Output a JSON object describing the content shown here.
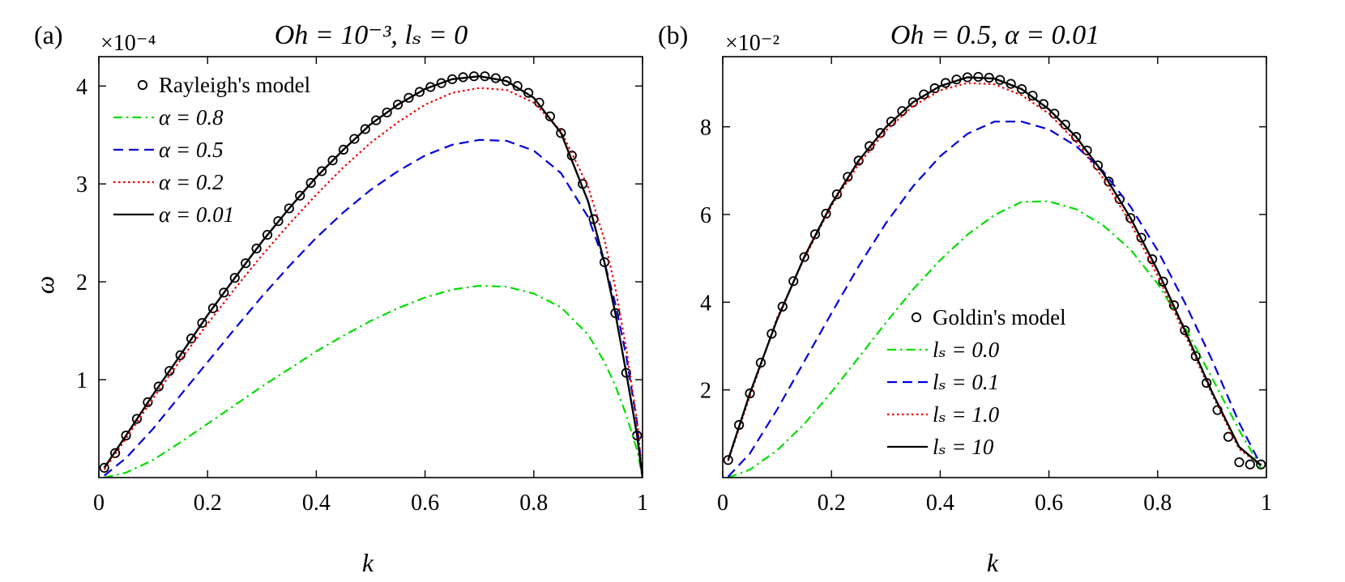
{
  "chart_data": [
    {
      "type": "line",
      "panel_label": "(a)",
      "title": "Oh = 10⁻³,  lₛ = 0",
      "exponent_label": "×10⁻⁴",
      "xlabel": "k",
      "ylabel": "ω",
      "xlim": [
        0,
        1
      ],
      "ylim": [
        0,
        4.3
      ],
      "xticks": [
        0,
        0.2,
        0.4,
        0.6,
        0.8,
        1
      ],
      "xtick_labels": [
        "0",
        "0.2",
        "0.4",
        "0.6",
        "0.8",
        "1"
      ],
      "yticks": [
        1,
        2,
        3,
        4
      ],
      "ytick_labels": [
        "1",
        "2",
        "3",
        "4"
      ],
      "legend_position": "top-left",
      "series": [
        {
          "name": "Rayleigh's model",
          "style": "markers",
          "color": "#000000",
          "x": [
            0.01,
            0.03,
            0.05,
            0.07,
            0.09,
            0.11,
            0.13,
            0.15,
            0.17,
            0.19,
            0.21,
            0.23,
            0.25,
            0.27,
            0.29,
            0.31,
            0.33,
            0.35,
            0.37,
            0.39,
            0.41,
            0.43,
            0.45,
            0.47,
            0.49,
            0.51,
            0.53,
            0.55,
            0.57,
            0.59,
            0.61,
            0.63,
            0.65,
            0.67,
            0.69,
            0.71,
            0.73,
            0.75,
            0.77,
            0.79,
            0.81,
            0.83,
            0.85,
            0.87,
            0.89,
            0.91,
            0.93,
            0.95,
            0.97,
            0.99
          ],
          "y": [
            0.1,
            0.25,
            0.43,
            0.6,
            0.77,
            0.93,
            1.09,
            1.25,
            1.42,
            1.58,
            1.73,
            1.89,
            2.04,
            2.19,
            2.34,
            2.48,
            2.62,
            2.75,
            2.88,
            3.01,
            3.13,
            3.24,
            3.35,
            3.46,
            3.56,
            3.65,
            3.73,
            3.81,
            3.88,
            3.94,
            3.99,
            4.03,
            4.07,
            4.09,
            4.1,
            4.1,
            4.08,
            4.05,
            4.0,
            3.93,
            3.83,
            3.69,
            3.52,
            3.29,
            3.0,
            2.64,
            2.2,
            1.68,
            1.07,
            0.43
          ]
        },
        {
          "name": "α = 0.8",
          "style": "dash-dot",
          "color": "#00dd00",
          "x": [
            0.01,
            0.05,
            0.1,
            0.15,
            0.2,
            0.25,
            0.3,
            0.35,
            0.4,
            0.45,
            0.5,
            0.55,
            0.6,
            0.65,
            0.7,
            0.75,
            0.8,
            0.85,
            0.9,
            0.93,
            0.95,
            0.97,
            0.99,
            1.0
          ],
          "y": [
            0.0,
            0.05,
            0.18,
            0.36,
            0.55,
            0.74,
            0.93,
            1.11,
            1.29,
            1.45,
            1.6,
            1.73,
            1.84,
            1.92,
            1.96,
            1.95,
            1.88,
            1.74,
            1.46,
            1.18,
            0.94,
            0.64,
            0.28,
            0.0
          ]
        },
        {
          "name": "α = 0.5",
          "style": "dashed",
          "color": "#0000dd",
          "x": [
            0.01,
            0.05,
            0.1,
            0.15,
            0.2,
            0.25,
            0.3,
            0.35,
            0.4,
            0.45,
            0.5,
            0.55,
            0.6,
            0.65,
            0.7,
            0.75,
            0.8,
            0.85,
            0.9,
            0.93,
            0.95,
            0.97,
            0.99,
            1.0
          ],
          "y": [
            0.02,
            0.2,
            0.5,
            0.84,
            1.18,
            1.52,
            1.85,
            2.16,
            2.45,
            2.71,
            2.94,
            3.13,
            3.29,
            3.4,
            3.45,
            3.44,
            3.34,
            3.11,
            2.66,
            2.2,
            1.78,
            1.24,
            0.56,
            0.0
          ]
        },
        {
          "name": "α = 0.2",
          "style": "dotted",
          "color": "#ee0000",
          "x": [
            0.01,
            0.05,
            0.1,
            0.15,
            0.2,
            0.25,
            0.3,
            0.35,
            0.4,
            0.45,
            0.5,
            0.55,
            0.6,
            0.65,
            0.7,
            0.75,
            0.8,
            0.85,
            0.9,
            0.93,
            0.95,
            0.97,
            0.99,
            1.0
          ],
          "y": [
            0.08,
            0.4,
            0.81,
            1.2,
            1.57,
            1.93,
            2.27,
            2.59,
            2.89,
            3.17,
            3.42,
            3.63,
            3.81,
            3.93,
            3.98,
            3.96,
            3.83,
            3.54,
            2.97,
            2.43,
            1.94,
            1.32,
            0.57,
            0.0
          ]
        },
        {
          "name": "α = 0.01",
          "style": "solid",
          "color": "#000000",
          "x": [
            0.01,
            0.05,
            0.1,
            0.15,
            0.2,
            0.25,
            0.3,
            0.35,
            0.4,
            0.45,
            0.5,
            0.55,
            0.6,
            0.65,
            0.7,
            0.75,
            0.8,
            0.85,
            0.9,
            0.93,
            0.95,
            0.97,
            0.99,
            1.0
          ],
          "y": [
            0.1,
            0.43,
            0.85,
            1.25,
            1.66,
            2.04,
            2.41,
            2.75,
            3.07,
            3.35,
            3.61,
            3.81,
            3.97,
            4.07,
            4.1,
            4.05,
            3.88,
            3.52,
            2.82,
            2.2,
            1.68,
            1.07,
            0.43,
            0.0
          ]
        }
      ]
    },
    {
      "type": "line",
      "panel_label": "(b)",
      "title": "Oh = 0.5,  α = 0.01",
      "exponent_label": "×10⁻²",
      "xlabel": "k",
      "ylabel": "",
      "xlim": [
        0,
        1
      ],
      "ylim": [
        0,
        9.6
      ],
      "xticks": [
        0,
        0.2,
        0.4,
        0.6,
        0.8,
        1
      ],
      "xtick_labels": [
        "0",
        "0.2",
        "0.4",
        "0.6",
        "0.8",
        "1"
      ],
      "yticks": [
        2,
        4,
        6,
        8
      ],
      "ytick_labels": [
        "2",
        "4",
        "6",
        "8"
      ],
      "legend_position": "bottom-center",
      "series": [
        {
          "name": "Goldin's model",
          "style": "markers",
          "color": "#000000",
          "x": [
            0.01,
            0.03,
            0.05,
            0.07,
            0.09,
            0.11,
            0.13,
            0.15,
            0.17,
            0.19,
            0.21,
            0.23,
            0.25,
            0.27,
            0.29,
            0.31,
            0.33,
            0.35,
            0.37,
            0.39,
            0.41,
            0.43,
            0.45,
            0.47,
            0.49,
            0.51,
            0.53,
            0.55,
            0.57,
            0.59,
            0.61,
            0.63,
            0.65,
            0.67,
            0.69,
            0.71,
            0.73,
            0.75,
            0.77,
            0.79,
            0.81,
            0.83,
            0.85,
            0.87,
            0.89,
            0.91,
            0.93,
            0.95,
            0.97,
            0.99
          ],
          "y": [
            0.4,
            1.2,
            1.92,
            2.62,
            3.28,
            3.9,
            4.48,
            5.03,
            5.55,
            6.02,
            6.46,
            6.86,
            7.23,
            7.56,
            7.86,
            8.12,
            8.36,
            8.56,
            8.74,
            8.88,
            9.0,
            9.08,
            9.13,
            9.14,
            9.12,
            9.07,
            8.98,
            8.86,
            8.71,
            8.52,
            8.3,
            8.05,
            7.77,
            7.46,
            7.12,
            6.75,
            6.35,
            5.92,
            5.47,
            4.98,
            4.47,
            3.93,
            3.36,
            2.77,
            2.16,
            1.54,
            0.93,
            0.35,
            0.3,
            0.3
          ]
        },
        {
          "name": "lₛ = 0.0",
          "style": "dash-dot",
          "color": "#00dd00",
          "x": [
            0.01,
            0.05,
            0.1,
            0.15,
            0.2,
            0.25,
            0.3,
            0.35,
            0.4,
            0.45,
            0.5,
            0.55,
            0.6,
            0.65,
            0.7,
            0.75,
            0.8,
            0.85,
            0.9,
            0.95,
            0.99
          ],
          "y": [
            0.0,
            0.18,
            0.62,
            1.22,
            1.95,
            2.74,
            3.53,
            4.29,
            4.96,
            5.54,
            5.99,
            6.29,
            6.3,
            6.12,
            5.75,
            5.2,
            4.42,
            3.43,
            2.27,
            1.08,
            0.22
          ]
        },
        {
          "name": "lₛ = 0.1",
          "style": "dashed",
          "color": "#0000dd",
          "x": [
            0.01,
            0.05,
            0.1,
            0.15,
            0.2,
            0.25,
            0.3,
            0.35,
            0.4,
            0.45,
            0.5,
            0.55,
            0.6,
            0.65,
            0.7,
            0.75,
            0.8,
            0.85,
            0.9,
            0.95,
            0.99
          ],
          "y": [
            0.02,
            0.55,
            1.55,
            2.65,
            3.75,
            4.82,
            5.8,
            6.64,
            7.33,
            7.84,
            8.12,
            8.12,
            7.94,
            7.56,
            6.98,
            6.18,
            5.18,
            3.99,
            2.68,
            1.25,
            0.28
          ]
        },
        {
          "name": "lₛ = 1.0",
          "style": "dotted",
          "color": "#ee0000",
          "x": [
            0.01,
            0.05,
            0.1,
            0.15,
            0.2,
            0.25,
            0.3,
            0.35,
            0.4,
            0.45,
            0.5,
            0.55,
            0.6,
            0.65,
            0.7,
            0.75,
            0.8,
            0.85,
            0.9,
            0.95,
            0.99
          ],
          "y": [
            0.38,
            1.86,
            3.64,
            5.0,
            6.2,
            7.15,
            7.91,
            8.47,
            8.83,
            9.0,
            8.97,
            8.72,
            8.3,
            7.66,
            6.82,
            5.8,
            4.6,
            3.27,
            1.9,
            0.65,
            0.28
          ]
        },
        {
          "name": "lₛ = 10",
          "style": "solid",
          "color": "#000000",
          "x": [
            0.01,
            0.05,
            0.1,
            0.15,
            0.2,
            0.25,
            0.3,
            0.35,
            0.4,
            0.45,
            0.5,
            0.55,
            0.6,
            0.65,
            0.7,
            0.75,
            0.8,
            0.85,
            0.9,
            0.95,
            0.99
          ],
          "y": [
            0.4,
            1.92,
            3.6,
            5.03,
            6.24,
            7.23,
            7.99,
            8.56,
            8.93,
            9.13,
            9.1,
            8.86,
            8.4,
            7.77,
            6.94,
            5.92,
            4.72,
            3.36,
            1.95,
            0.7,
            0.28
          ]
        }
      ]
    }
  ]
}
